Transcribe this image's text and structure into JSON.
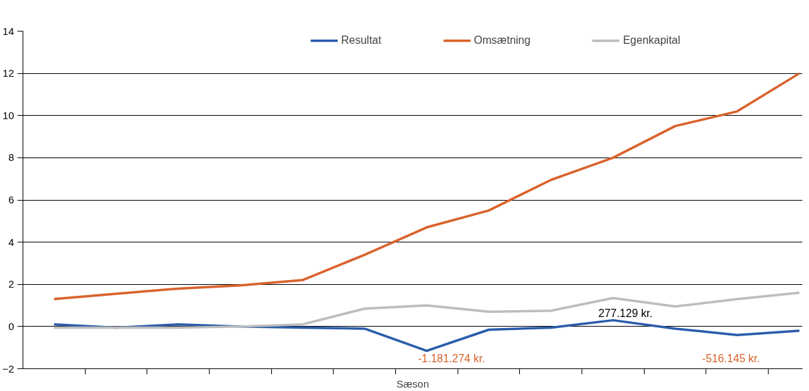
{
  "chart_data": {
    "type": "line",
    "xlabel": "Sæson",
    "categories": [
      null,
      null,
      null,
      null,
      null,
      null,
      null,
      null,
      null,
      null,
      null,
      null,
      null
    ],
    "series": [
      {
        "name": "Resultat",
        "color": "#2a5caa",
        "values": [
          0.1,
          -0.05,
          0.1,
          0.0,
          -0.05,
          -0.1,
          -1.15,
          -0.15,
          -0.05,
          0.3,
          -0.1,
          -0.4,
          -0.2
        ]
      },
      {
        "name": "Omsætning",
        "color": "#d9622b",
        "values": [
          1.3,
          1.55,
          1.8,
          1.95,
          2.2,
          3.4,
          4.7,
          5.5,
          6.95,
          8.0,
          9.5,
          10.2,
          12.0
        ]
      },
      {
        "name": "Egenkapital",
        "color": "#bdbdbd",
        "values": [
          -0.05,
          -0.05,
          -0.05,
          0.0,
          0.1,
          0.85,
          1.0,
          0.7,
          0.75,
          1.35,
          0.95,
          1.3,
          1.6
        ]
      }
    ],
    "ylim": [
      -2,
      14
    ],
    "yticks": [
      -2,
      0,
      2,
      4,
      6,
      8,
      10,
      12,
      14
    ],
    "grid": "y",
    "legend": "top",
    "marker": "none",
    "line_style": "solid",
    "annotations": [
      "-1.181.274 kr.",
      "277.129 kr.",
      "-516.145 kr."
    ]
  }
}
